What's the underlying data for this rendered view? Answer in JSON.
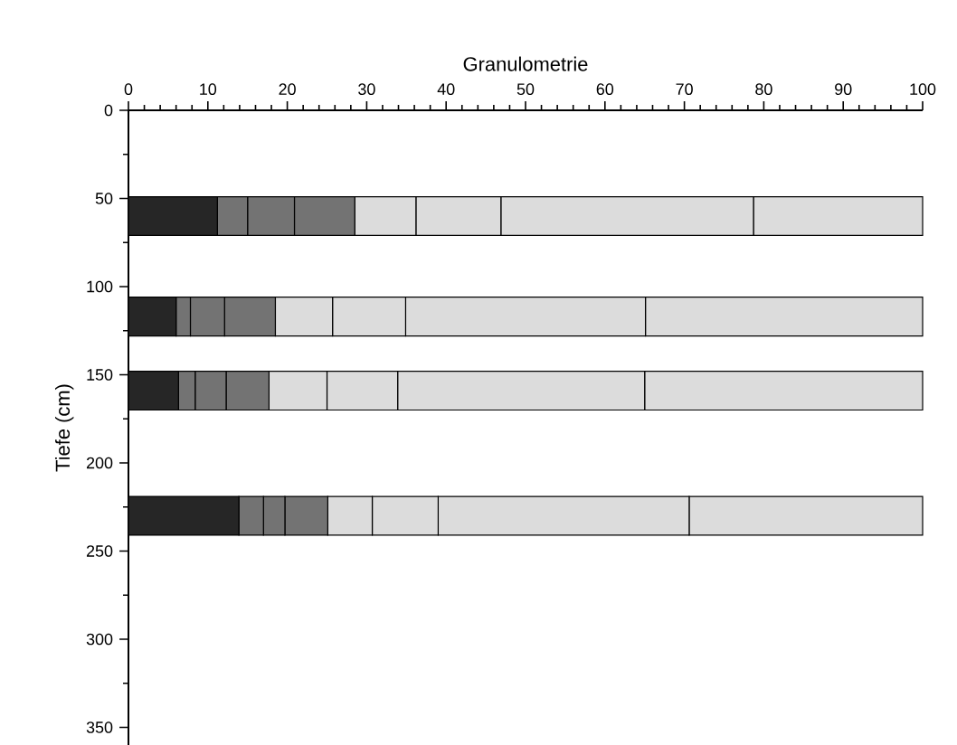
{
  "chart_data": {
    "type": "bar",
    "orientation": "horizontal",
    "stacked": true,
    "xlabel": "Granulometrie",
    "ylabel": "Tiefe (cm)",
    "x": [
      60,
      117,
      159,
      230
    ],
    "series": [
      {
        "color": "#262626",
        "values": [
          11.2,
          6.0,
          6.3,
          13.9
        ]
      },
      {
        "color": "#737373",
        "values": [
          3.8,
          1.8,
          2.1,
          3.1
        ]
      },
      {
        "color": "#737373",
        "values": [
          5.9,
          4.3,
          3.9,
          2.7
        ]
      },
      {
        "color": "#737373",
        "values": [
          7.6,
          6.4,
          5.4,
          5.4
        ]
      },
      {
        "color": "#dcdcdc",
        "values": [
          7.7,
          7.2,
          7.3,
          5.6
        ]
      },
      {
        "color": "#dcdcdc",
        "values": [
          10.7,
          9.2,
          8.9,
          8.3
        ]
      },
      {
        "color": "#dcdcdc",
        "values": [
          31.8,
          30.2,
          31.1,
          31.6
        ]
      },
      {
        "color": "#dcdcdc",
        "values": [
          21.3,
          34.9,
          35.0,
          29.4
        ]
      }
    ],
    "xlim": [
      0,
      100
    ],
    "xticks": [
      0,
      10,
      20,
      30,
      40,
      50,
      60,
      70,
      80,
      90,
      100
    ],
    "ylim": [
      360,
      0
    ],
    "yticks": [
      0,
      50,
      100,
      150,
      200,
      250,
      300,
      350
    ]
  }
}
